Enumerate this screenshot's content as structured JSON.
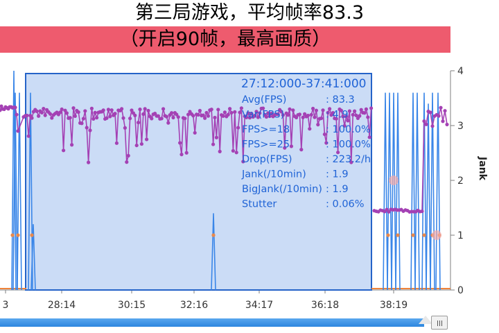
{
  "header": {
    "title": "第三局游戏，平均帧率83.3",
    "subtitle": "（开启90帧，最高画质）"
  },
  "colors": {
    "fps_series": "#a441b4",
    "jank_series": "#3a86e8",
    "selection_fill": "#cbdcf6",
    "selection_border": "#2563c8",
    "banner": "#ee5b6e"
  },
  "chart_data": {
    "type": "line",
    "x_tick_labels": [
      "3",
      "28:14",
      "30:15",
      "32:16",
      "34:17",
      "36:18",
      "38:19"
    ],
    "y2_axis": {
      "label": "Jank",
      "ticks": [
        0,
        1,
        2,
        3,
        4
      ],
      "range": [
        0,
        4
      ]
    },
    "series": [
      {
        "name": "",
        "color": "#a441b4",
        "values_note": "",
        "mean": 3.2,
        "min": 2.3,
        "max": 3.4
      },
      {
        "name": "",
        "color": "#3a86e8",
        "values": []
      }
    ],
    "stats_panel": {
      "range": "27:12:000-37:41:000",
      "rows": [
        {
          "label": "Avg(FPS)",
          "value": ": 83.3"
        },
        {
          "label": "Var(FPS)",
          "value": ": 4.9"
        },
        {
          "label": "FPS>=18",
          "value": ": 100.0%"
        },
        {
          "label": "FPS>=25",
          "value": ": 100.0%"
        },
        {
          "label": "Drop(FPS)",
          "value": ": 223.2/h"
        },
        {
          "label": "Jank(/10min)",
          "value": ": 1.9"
        },
        {
          "label": "BigJank(/10min)",
          "value": ": 1.9"
        },
        {
          "label": "Stutter",
          "value": ": 0.06%"
        }
      ]
    }
  }
}
